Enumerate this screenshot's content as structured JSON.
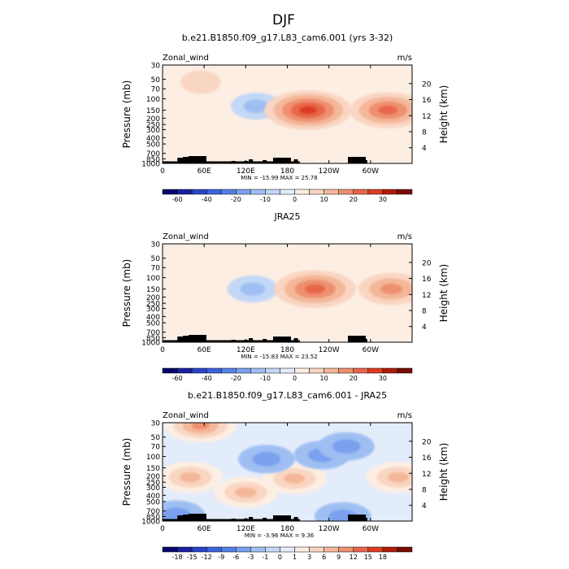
{
  "figure": {
    "title": "DJF"
  },
  "chart_data": [
    {
      "type": "heatmap",
      "title": "b.e21.B1850.f09_g17.L83_cam6.001 (yrs 3-32)",
      "variable_label": "Zonal_wind",
      "units_label": "m/s",
      "ylabel": "Pressure (mb)",
      "ylabel_right": "Height (km)",
      "x_ticks": [
        "0",
        "60E",
        "120E",
        "180",
        "120W",
        "60W"
      ],
      "x_tick_lon": [
        0,
        60,
        120,
        180,
        240,
        300
      ],
      "xlim": [
        0,
        360
      ],
      "y_ticks": [
        "30",
        "50",
        "70",
        "100",
        "150",
        "200",
        "250",
        "300",
        "400",
        "500",
        "700",
        "850",
        "1000"
      ],
      "y_tick_values": [
        30,
        50,
        70,
        100,
        150,
        200,
        250,
        300,
        400,
        500,
        700,
        850,
        1000
      ],
      "ylim": [
        1000,
        30
      ],
      "y_scale": "log",
      "right_ticks": [
        "20",
        "16",
        "12",
        "8",
        "4"
      ],
      "right_tick_km": [
        20,
        16,
        12,
        8,
        4
      ],
      "min_max": "MIN = -15.99   MAX =  25.78",
      "colorbar": {
        "labels": [
          "-60",
          "-40",
          "-20",
          "-10",
          "0",
          "10",
          "20",
          "30"
        ],
        "levels": [
          -70,
          -60,
          -50,
          -40,
          -30,
          -20,
          -15,
          -10,
          -5,
          0,
          5,
          10,
          15,
          20,
          25,
          30,
          35
        ],
        "colors": [
          "#07076b",
          "#1b1fa0",
          "#2a44c8",
          "#3a64de",
          "#5580e6",
          "#7aa0ee",
          "#9fbff3",
          "#c3d8f7",
          "#e3ecfb",
          "#fdeee3",
          "#f9d6c2",
          "#f4b79a",
          "#ee9070",
          "#e8664a",
          "#dc3d22",
          "#ae1c08",
          "#7a0c03"
        ]
      },
      "features": [
        {
          "lon": 135,
          "p": 130,
          "value": -12
        },
        {
          "lon": 210,
          "p": 150,
          "value": 26
        },
        {
          "lon": 325,
          "p": 150,
          "value": 22
        },
        {
          "lon": 55,
          "p": 55,
          "value": 8
        },
        {
          "lon": 20,
          "p": 600,
          "value": -4
        },
        {
          "lon": 240,
          "p": 800,
          "value": -4
        }
      ]
    },
    {
      "type": "heatmap",
      "title": "JRA25",
      "variable_label": "Zonal_wind",
      "units_label": "m/s",
      "ylabel": "Pressure (mb)",
      "ylabel_right": "Height (km)",
      "x_ticks": [
        "0",
        "60E",
        "120E",
        "180",
        "120W",
        "60W"
      ],
      "x_tick_lon": [
        0,
        60,
        120,
        180,
        240,
        300
      ],
      "xlim": [
        0,
        360
      ],
      "y_ticks": [
        "30",
        "50",
        "70",
        "100",
        "150",
        "200",
        "250",
        "300",
        "400",
        "500",
        "700",
        "850",
        "1000"
      ],
      "y_tick_values": [
        30,
        50,
        70,
        100,
        150,
        200,
        250,
        300,
        400,
        500,
        700,
        850,
        1000
      ],
      "ylim": [
        1000,
        30
      ],
      "y_scale": "log",
      "right_ticks": [
        "20",
        "16",
        "12",
        "8",
        "4"
      ],
      "right_tick_km": [
        20,
        16,
        12,
        8,
        4
      ],
      "min_max": "MIN = -15.83   MAX =  23.52",
      "colorbar": {
        "labels": [
          "-60",
          "-40",
          "-20",
          "-10",
          "0",
          "10",
          "20",
          "30"
        ],
        "levels": [
          -70,
          -60,
          -50,
          -40,
          -30,
          -20,
          -15,
          -10,
          -5,
          0,
          5,
          10,
          15,
          20,
          25,
          30,
          35
        ],
        "colors": [
          "#07076b",
          "#1b1fa0",
          "#2a44c8",
          "#3a64de",
          "#5580e6",
          "#7aa0ee",
          "#9fbff3",
          "#c3d8f7",
          "#e3ecfb",
          "#fdeee3",
          "#f9d6c2",
          "#f4b79a",
          "#ee9070",
          "#e8664a",
          "#dc3d22",
          "#ae1c08",
          "#7a0c03"
        ]
      },
      "features": [
        {
          "lon": 130,
          "p": 150,
          "value": -12
        },
        {
          "lon": 220,
          "p": 150,
          "value": 24
        },
        {
          "lon": 330,
          "p": 150,
          "value": 18
        },
        {
          "lon": 90,
          "p": 300,
          "value": -4
        },
        {
          "lon": 20,
          "p": 600,
          "value": -4
        }
      ]
    },
    {
      "type": "heatmap",
      "title": "b.e21.B1850.f09_g17.L83_cam6.001 - JRA25",
      "variable_label": "Zonal_wind",
      "units_label": "m/s",
      "ylabel": "Pressure (mb)",
      "ylabel_right": "Height (km)",
      "x_ticks": [
        "0",
        "60E",
        "120E",
        "180",
        "120W",
        "60W"
      ],
      "x_tick_lon": [
        0,
        60,
        120,
        180,
        240,
        300
      ],
      "xlim": [
        0,
        360
      ],
      "y_ticks": [
        "30",
        "50",
        "70",
        "100",
        "150",
        "200",
        "250",
        "300",
        "400",
        "500",
        "700",
        "850",
        "1000"
      ],
      "y_tick_values": [
        30,
        50,
        70,
        100,
        150,
        200,
        250,
        300,
        400,
        500,
        700,
        850,
        1000
      ],
      "ylim": [
        1000,
        30
      ],
      "y_scale": "log",
      "right_ticks": [
        "20",
        "16",
        "12",
        "8",
        "4"
      ],
      "right_tick_km": [
        20,
        16,
        12,
        8,
        4
      ],
      "min_max": "MIN =  -3.96   MAX =   9.36",
      "colorbar": {
        "labels": [
          "-18",
          "-15",
          "-12",
          "-9",
          "-6",
          "-3",
          "-1",
          "0",
          "1",
          "3",
          "6",
          "9",
          "12",
          "15",
          "18"
        ],
        "levels": [
          -21,
          -18,
          -15,
          -12,
          -9,
          -6,
          -3,
          -1,
          0,
          1,
          3,
          6,
          9,
          12,
          15,
          18,
          21
        ],
        "colors": [
          "#07076b",
          "#1b1fa0",
          "#2a44c8",
          "#3a64de",
          "#5580e6",
          "#7aa0ee",
          "#9fbff3",
          "#c3d8f7",
          "#e3ecfb",
          "#fdeee3",
          "#f9d6c2",
          "#f4b79a",
          "#ee9070",
          "#e8664a",
          "#dc3d22",
          "#ae1c08",
          "#7a0c03"
        ]
      },
      "features": [
        {
          "lon": 55,
          "p": 33,
          "value": 9
        },
        {
          "lon": 190,
          "p": 220,
          "value": 6
        },
        {
          "lon": 340,
          "p": 210,
          "value": 6
        },
        {
          "lon": 120,
          "p": 360,
          "value": 6
        },
        {
          "lon": 40,
          "p": 210,
          "value": 6
        },
        {
          "lon": 230,
          "p": 95,
          "value": -3
        },
        {
          "lon": 265,
          "p": 70,
          "value": -3
        },
        {
          "lon": 150,
          "p": 110,
          "value": -3
        },
        {
          "lon": 20,
          "p": 800,
          "value": -3
        },
        {
          "lon": 260,
          "p": 850,
          "value": -3
        }
      ]
    }
  ]
}
